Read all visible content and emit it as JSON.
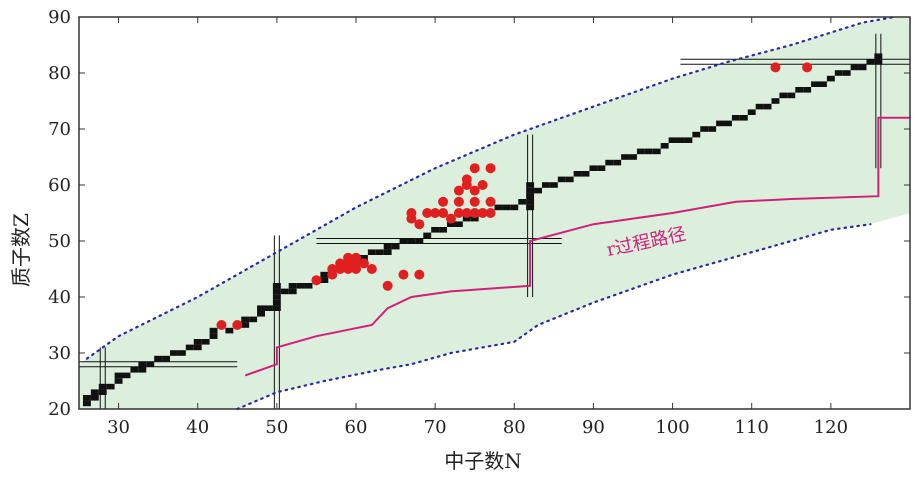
{
  "chart_data": {
    "type": "scatter",
    "title": "",
    "xlabel": "中子数N",
    "ylabel": "质子数Z",
    "xlim": [
      25,
      130
    ],
    "ylim": [
      20,
      90
    ],
    "x_ticks": [
      30,
      40,
      50,
      60,
      70,
      80,
      90,
      100,
      110,
      120
    ],
    "y_ticks": [
      20,
      30,
      40,
      50,
      60,
      70,
      80,
      90
    ],
    "grid": false,
    "legend": "none",
    "annotation": "r过程路径",
    "colors": {
      "background": "#ffffff",
      "region_fill": "#dcefdc",
      "stable": "#111111",
      "measured": "#e02020",
      "r_path": "#d0207a",
      "drip_line": "#2a2a9a",
      "magic_lines": "#111111"
    },
    "series": [
      {
        "role": "stable-nuclei",
        "marker": "square",
        "points": [
          [
            26,
            21
          ],
          [
            26,
            22
          ],
          [
            27,
            22
          ],
          [
            27,
            23
          ],
          [
            28,
            23
          ],
          [
            28,
            24
          ],
          [
            29,
            24
          ],
          [
            30,
            25
          ],
          [
            30,
            26
          ],
          [
            31,
            26
          ],
          [
            32,
            27
          ],
          [
            33,
            27
          ],
          [
            33,
            28
          ],
          [
            34,
            28
          ],
          [
            35,
            29
          ],
          [
            36,
            29
          ],
          [
            37,
            30
          ],
          [
            38,
            30
          ],
          [
            39,
            31
          ],
          [
            40,
            31
          ],
          [
            40,
            32
          ],
          [
            41,
            32
          ],
          [
            42,
            33
          ],
          [
            42,
            34
          ],
          [
            44,
            34
          ],
          [
            45,
            35
          ],
          [
            46,
            35
          ],
          [
            46,
            36
          ],
          [
            47,
            36
          ],
          [
            48,
            37
          ],
          [
            48,
            38
          ],
          [
            49,
            38
          ],
          [
            50,
            38
          ],
          [
            50,
            39
          ],
          [
            50,
            40
          ],
          [
            50,
            41
          ],
          [
            50,
            42
          ],
          [
            51,
            41
          ],
          [
            52,
            41
          ],
          [
            52,
            42
          ],
          [
            53,
            42
          ],
          [
            54,
            42
          ],
          [
            55,
            43
          ],
          [
            56,
            43
          ],
          [
            56,
            44
          ],
          [
            57,
            44
          ],
          [
            58,
            45
          ],
          [
            58,
            46
          ],
          [
            59,
            46
          ],
          [
            60,
            46
          ],
          [
            60,
            47
          ],
          [
            61,
            47
          ],
          [
            62,
            48
          ],
          [
            63,
            48
          ],
          [
            64,
            48
          ],
          [
            64,
            49
          ],
          [
            65,
            49
          ],
          [
            66,
            50
          ],
          [
            67,
            50
          ],
          [
            68,
            50
          ],
          [
            69,
            51
          ],
          [
            70,
            52
          ],
          [
            71,
            52
          ],
          [
            72,
            53
          ],
          [
            73,
            53
          ],
          [
            74,
            54
          ],
          [
            75,
            54
          ],
          [
            76,
            55
          ],
          [
            77,
            55
          ],
          [
            78,
            56
          ],
          [
            79,
            56
          ],
          [
            80,
            56
          ],
          [
            81,
            57
          ],
          [
            82,
            56
          ],
          [
            82,
            57
          ],
          [
            82,
            58
          ],
          [
            82,
            59
          ],
          [
            82,
            60
          ],
          [
            83,
            59
          ],
          [
            84,
            60
          ],
          [
            85,
            60
          ],
          [
            86,
            61
          ],
          [
            87,
            61
          ],
          [
            88,
            62
          ],
          [
            89,
            62
          ],
          [
            90,
            63
          ],
          [
            91,
            63
          ],
          [
            92,
            64
          ],
          [
            93,
            64
          ],
          [
            94,
            65
          ],
          [
            95,
            65
          ],
          [
            96,
            66
          ],
          [
            97,
            66
          ],
          [
            98,
            66
          ],
          [
            99,
            67
          ],
          [
            100,
            68
          ],
          [
            101,
            68
          ],
          [
            102,
            68
          ],
          [
            103,
            69
          ],
          [
            104,
            70
          ],
          [
            105,
            70
          ],
          [
            106,
            71
          ],
          [
            107,
            71
          ],
          [
            108,
            72
          ],
          [
            109,
            72
          ],
          [
            110,
            73
          ],
          [
            111,
            74
          ],
          [
            112,
            74
          ],
          [
            113,
            75
          ],
          [
            114,
            76
          ],
          [
            115,
            76
          ],
          [
            116,
            77
          ],
          [
            117,
            77
          ],
          [
            118,
            78
          ],
          [
            119,
            78
          ],
          [
            120,
            79
          ],
          [
            121,
            80
          ],
          [
            122,
            80
          ],
          [
            123,
            81
          ],
          [
            124,
            81
          ],
          [
            125,
            82
          ],
          [
            126,
            82
          ],
          [
            126,
            83
          ]
        ]
      },
      {
        "role": "measured-nuclei",
        "marker": "circle",
        "points": [
          [
            43,
            35
          ],
          [
            45,
            35
          ],
          [
            55,
            43
          ],
          [
            57,
            44
          ],
          [
            57,
            45
          ],
          [
            58,
            45
          ],
          [
            58,
            46
          ],
          [
            59,
            45
          ],
          [
            59,
            46
          ],
          [
            59,
            47
          ],
          [
            60,
            45
          ],
          [
            60,
            46
          ],
          [
            60,
            47
          ],
          [
            61,
            46
          ],
          [
            62,
            45
          ],
          [
            64,
            42
          ],
          [
            66,
            44
          ],
          [
            67,
            54
          ],
          [
            67,
            55
          ],
          [
            68,
            44
          ],
          [
            68,
            53
          ],
          [
            69,
            55
          ],
          [
            70,
            55
          ],
          [
            71,
            55
          ],
          [
            71,
            57
          ],
          [
            72,
            54
          ],
          [
            73,
            55
          ],
          [
            73,
            57
          ],
          [
            73,
            59
          ],
          [
            74,
            60
          ],
          [
            74,
            61
          ],
          [
            74,
            55
          ],
          [
            75,
            55
          ],
          [
            75,
            57
          ],
          [
            75,
            59
          ],
          [
            75,
            63
          ],
          [
            76,
            55
          ],
          [
            76,
            60
          ],
          [
            77,
            55
          ],
          [
            77,
            57
          ],
          [
            77,
            63
          ],
          [
            113,
            81
          ],
          [
            117,
            81
          ]
        ]
      },
      {
        "role": "r-process-path",
        "points": [
          [
            46,
            26
          ],
          [
            50,
            28
          ],
          [
            50,
            31
          ],
          [
            55,
            33
          ],
          [
            62,
            35
          ],
          [
            64,
            38
          ],
          [
            67,
            40
          ],
          [
            72,
            41
          ],
          [
            82,
            42
          ],
          [
            82,
            50
          ],
          [
            90,
            53
          ],
          [
            95,
            54
          ],
          [
            100,
            55
          ],
          [
            108,
            57
          ],
          [
            115,
            57.5
          ],
          [
            126,
            58
          ],
          [
            126,
            72
          ],
          [
            130,
            72
          ]
        ]
      },
      {
        "role": "neutron-drip-line",
        "points": [
          [
            45,
            19
          ],
          [
            50,
            23
          ],
          [
            56,
            25
          ],
          [
            63,
            27
          ],
          [
            67,
            28
          ],
          [
            72,
            30
          ],
          [
            80,
            32
          ],
          [
            83,
            35
          ],
          [
            90,
            39
          ],
          [
            100,
            44
          ],
          [
            110,
            48
          ],
          [
            120,
            52
          ],
          [
            125,
            53
          ]
        ]
      },
      {
        "role": "proton-drip-line",
        "points": [
          [
            26,
            29
          ],
          [
            30,
            33
          ],
          [
            40,
            40
          ],
          [
            50,
            48
          ],
          [
            60,
            56
          ],
          [
            70,
            63
          ],
          [
            80,
            69
          ],
          [
            90,
            74
          ],
          [
            100,
            79
          ],
          [
            107,
            82
          ],
          [
            115,
            85
          ],
          [
            124,
            89
          ],
          [
            128,
            90
          ]
        ]
      }
    ]
  }
}
